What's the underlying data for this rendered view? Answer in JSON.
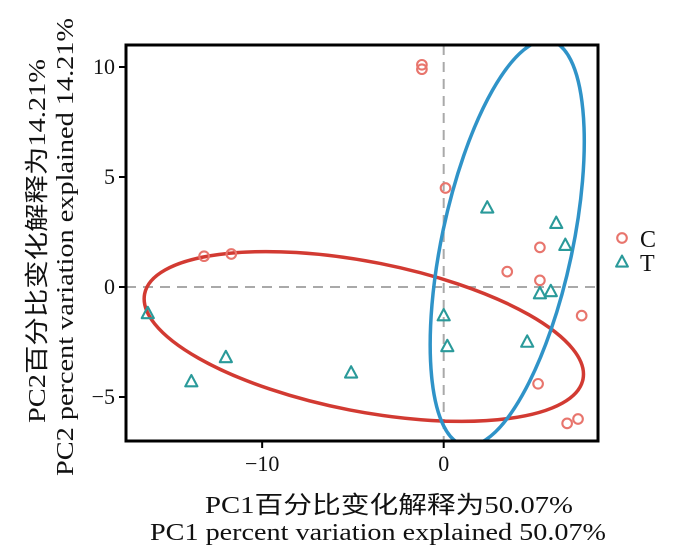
{
  "chart_data": {
    "type": "scatter",
    "title": "",
    "xlabel_lines": [
      "PC1百分比变化解释为50.07%",
      "PC1 percent variation explained 50.07%"
    ],
    "ylabel_lines": [
      "PC2百分比变化解释为14.21%",
      "PC2 percent variation explained 14.21%"
    ],
    "xlim": [
      -17.5,
      8.5
    ],
    "ylim": [
      -7.0,
      11.0
    ],
    "x_ticks": [
      -10,
      0
    ],
    "y_ticks": [
      10,
      5,
      0,
      -5
    ],
    "x_tick_labels": [
      "−10",
      "0"
    ],
    "y_tick_labels": [
      "10",
      "5",
      "0",
      "−5"
    ],
    "reference_lines": {
      "x": 0,
      "y": 0
    },
    "grid": false,
    "legend_position": "right",
    "series": [
      {
        "name": "C",
        "marker": "circle",
        "color": "#e8756d",
        "points": [
          [
            -1.2,
            10.1
          ],
          [
            -1.2,
            9.9
          ],
          [
            0.1,
            4.5
          ],
          [
            -13.2,
            1.4
          ],
          [
            -11.7,
            1.5
          ],
          [
            3.5,
            0.7
          ],
          [
            5.3,
            1.8
          ],
          [
            5.3,
            0.3
          ],
          [
            7.6,
            -1.3
          ],
          [
            5.2,
            -4.4
          ],
          [
            6.8,
            -6.2
          ],
          [
            7.4,
            -6.0
          ]
        ]
      },
      {
        "name": "T",
        "marker": "triangle",
        "color": "#2a9a9a",
        "points": [
          [
            -16.3,
            -1.2
          ],
          [
            -13.9,
            -4.3
          ],
          [
            -12.0,
            -3.2
          ],
          [
            -5.1,
            -3.9
          ],
          [
            0.0,
            -1.3
          ],
          [
            0.2,
            -2.7
          ],
          [
            2.4,
            3.6
          ],
          [
            4.6,
            -2.5
          ],
          [
            5.3,
            -0.3
          ],
          [
            5.9,
            -0.2
          ],
          [
            6.2,
            2.9
          ],
          [
            6.7,
            1.9
          ]
        ]
      }
    ],
    "ellipses": [
      {
        "name": "C",
        "color": "#d23a32",
        "center": [
          -4.4,
          -2.25
        ],
        "rx": 12.3,
        "ry": 3.4,
        "angle_deg": 11
      },
      {
        "name": "T",
        "color": "#2f93c8",
        "center": [
          3.5,
          2.0
        ],
        "rx": 3.6,
        "ry": 9.4,
        "angle_deg": 12
      }
    ]
  }
}
